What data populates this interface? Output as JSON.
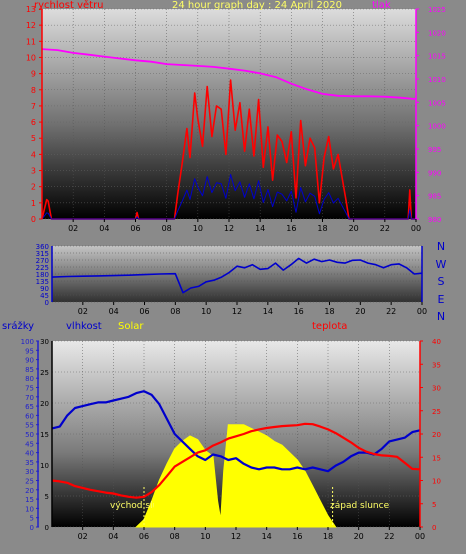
{
  "header": {
    "title": "24 hour graph day : 24 April 2020",
    "left_label": "rychlost větru",
    "right_label": "tlak",
    "wind_dir_letters": [
      "N",
      "W",
      "S",
      "E",
      "N"
    ],
    "bottom_labels": {
      "rain": "srážky",
      "humidity": "vlhkost",
      "solar": "Solar",
      "temp": "teplota"
    },
    "sunrise": "východ slunce",
    "sunset": "západ slunce"
  },
  "colors": {
    "wind": "#ff0000",
    "gust": "#ff0000",
    "pressure": "#ff00ff",
    "direction": "#0000cc",
    "humidity": "#0000cc",
    "solar": "#ffff00",
    "temperature": "#ff0000",
    "rain": "#2222cc",
    "title": "#ffff66"
  },
  "chart_data": [
    {
      "type": "line",
      "title": "24 hour graph day : 24 April 2020",
      "x_ticks": [
        "02",
        "04",
        "06",
        "08",
        "10",
        "12",
        "14",
        "16",
        "18",
        "20",
        "22",
        "00"
      ],
      "xlim": [
        0,
        24
      ],
      "y_left": {
        "label": "rychlost větru",
        "ylim": [
          0,
          13
        ],
        "ticks": [
          0,
          1,
          2,
          3,
          4,
          5,
          6,
          7,
          8,
          9,
          10,
          11,
          12,
          13
        ]
      },
      "y_right": {
        "label": "tlak",
        "ylim": [
          980,
          1025
        ],
        "ticks": [
          980,
          985,
          990,
          995,
          1000,
          1005,
          1010,
          1015,
          1020,
          1025
        ]
      },
      "series": [
        {
          "axis": "right",
          "x": [
            0,
            1,
            2,
            3,
            4,
            5,
            6,
            7,
            8,
            9,
            10,
            11,
            12,
            13,
            14,
            15,
            16,
            17,
            18,
            19,
            20,
            21,
            22,
            23,
            24
          ],
          "values": [
            1016.4,
            1016.2,
            1015.6,
            1015.2,
            1014.8,
            1014.4,
            1014.0,
            1013.7,
            1013.2,
            1013.0,
            1012.8,
            1012.6,
            1012.2,
            1011.8,
            1011.2,
            1010.4,
            1009.0,
            1007.8,
            1006.8,
            1006.4,
            1006.3,
            1006.3,
            1006.2,
            1006.0,
            1005.7
          ]
        },
        {
          "axis": "left",
          "representative": true,
          "x": [
            0,
            0.3,
            0.4,
            0.6,
            6.0,
            6.1,
            6.2,
            8.5,
            8.7,
            9.0,
            9.3,
            9.5,
            9.8,
            10.0,
            10.3,
            10.6,
            10.9,
            11.2,
            11.5,
            11.8,
            12.1,
            12.4,
            12.7,
            13.0,
            13.3,
            13.6,
            13.9,
            14.2,
            14.5,
            14.8,
            15.1,
            15.4,
            15.7,
            16.0,
            16.3,
            16.6,
            16.9,
            17.2,
            17.5,
            17.8,
            18.1,
            18.4,
            18.7,
            19.0,
            19.3,
            19.5,
            19.7,
            23.5,
            23.6,
            23.7,
            24
          ],
          "values": [
            0,
            1.2,
            1.1,
            0,
            0,
            0.4,
            0,
            0,
            1.5,
            3.5,
            5.6,
            3.8,
            7.8,
            6.2,
            4.5,
            8.2,
            5.1,
            7.0,
            6.8,
            4.0,
            8.6,
            5.5,
            7.2,
            4.2,
            6.8,
            3.9,
            7.4,
            3.2,
            5.7,
            2.4,
            5.2,
            4.8,
            3.5,
            5.4,
            1.3,
            6.1,
            3.3,
            5.0,
            4.4,
            1.0,
            3.8,
            5.1,
            3.1,
            4.0,
            2.3,
            1.2,
            0,
            0,
            1.8,
            0,
            0
          ]
        }
      ]
    },
    {
      "type": "line",
      "x_ticks": [
        "02",
        "04",
        "06",
        "08",
        "10",
        "12",
        "14",
        "16",
        "18",
        "20",
        "22",
        "00"
      ],
      "xlim": [
        0,
        24
      ],
      "y_left": {
        "ylim": [
          0,
          360
        ],
        "ticks": [
          0,
          45,
          90,
          135,
          180,
          225,
          270,
          315,
          360
        ]
      },
      "y_right_labels": [
        "N",
        "W",
        "S",
        "E",
        "N"
      ],
      "series": [
        {
          "representative": true,
          "x": [
            0,
            1,
            2,
            3,
            4,
            5,
            6,
            7,
            8,
            8.5,
            9,
            9.5,
            10,
            10.5,
            11,
            11.5,
            12,
            12.5,
            13,
            13.5,
            14,
            14.5,
            15,
            15.5,
            16,
            16.5,
            17,
            17.5,
            18,
            18.5,
            19,
            19.5,
            20,
            20.5,
            21,
            21.5,
            22,
            22.5,
            23,
            23.5,
            24
          ],
          "values": [
            160,
            164,
            166,
            168,
            170,
            172,
            176,
            180,
            182,
            60,
            90,
            100,
            130,
            140,
            160,
            190,
            230,
            220,
            240,
            210,
            215,
            250,
            205,
            240,
            280,
            250,
            275,
            260,
            270,
            255,
            250,
            268,
            270,
            250,
            240,
            220,
            240,
            245,
            220,
            180,
            185
          ]
        }
      ]
    },
    {
      "type": "line",
      "x_ticks": [
        "02",
        "04",
        "06",
        "08",
        "10",
        "12",
        "14",
        "16",
        "18",
        "20",
        "22",
        "00"
      ],
      "xlim": [
        0,
        24
      ],
      "y_rain": {
        "label": "srážky",
        "ylim": [
          0,
          100
        ],
        "ticks": [
          0,
          5,
          10,
          15,
          20,
          25,
          30,
          35,
          40,
          45,
          50,
          55,
          60,
          65,
          70,
          75,
          80,
          85,
          90,
          95,
          100
        ]
      },
      "y_humidity": {
        "label": "vlhkost",
        "ylim": [
          0,
          30
        ],
        "ticks": [
          0,
          5,
          10,
          15,
          20,
          25,
          30
        ]
      },
      "y_temp": {
        "label": "teplota",
        "ylim": [
          0,
          40
        ],
        "ticks": [
          0,
          5,
          10,
          15,
          20,
          25,
          30,
          35,
          40
        ]
      },
      "series": [
        {
          "name": "vlhkost",
          "axis": "rain_scale",
          "x": [
            0,
            0.5,
            1,
            1.5,
            2,
            2.5,
            3,
            3.5,
            4,
            4.5,
            5,
            5.5,
            6,
            6.5,
            7,
            7.5,
            8,
            8.5,
            9,
            9.5,
            10,
            10.5,
            11,
            11.5,
            12,
            12.5,
            13,
            13.5,
            14,
            14.5,
            15,
            15.5,
            16,
            16.5,
            17,
            17.5,
            18,
            18.5,
            19,
            19.5,
            20,
            20.5,
            21,
            21.5,
            22,
            22.5,
            23,
            23.5,
            24
          ],
          "values": [
            53,
            54,
            60,
            64,
            65,
            66,
            67,
            67,
            68,
            69,
            70,
            72,
            73,
            71,
            66,
            58,
            50,
            46,
            42,
            38,
            36,
            39,
            38,
            36,
            37,
            34,
            32,
            31,
            32,
            32,
            31,
            31,
            32,
            31,
            32,
            31,
            30,
            33,
            35,
            38,
            40,
            40,
            39,
            42,
            46,
            47,
            48,
            51,
            52
          ]
        },
        {
          "name": "Solar",
          "axis": "rain_scale",
          "representative": true,
          "x": [
            5.5,
            6,
            6.5,
            7,
            7.5,
            8,
            8.5,
            9,
            9.5,
            10,
            10.5,
            10.8,
            11,
            11.2,
            11.5,
            12,
            12.5,
            13,
            13.5,
            14,
            14.5,
            15,
            15.5,
            16,
            16.5,
            17,
            17.5,
            18,
            18.5
          ],
          "values": [
            0,
            4,
            14,
            25,
            34,
            42,
            46,
            49,
            47,
            41,
            38,
            14,
            4,
            30,
            55,
            55,
            55,
            53,
            51,
            49,
            46,
            44,
            40,
            36,
            30,
            22,
            14,
            6,
            0
          ]
        },
        {
          "name": "teplota",
          "axis": "temp",
          "x": [
            0,
            0.5,
            1,
            1.5,
            2,
            2.5,
            3,
            3.5,
            4,
            4.5,
            5,
            5.5,
            6,
            6.5,
            7,
            7.5,
            8,
            8.5,
            9,
            9.5,
            10,
            10.5,
            11,
            11.5,
            12,
            12.5,
            13,
            13.5,
            14,
            14.5,
            15,
            15.5,
            16,
            16.5,
            17,
            17.5,
            18,
            18.5,
            19,
            19.5,
            20,
            20.5,
            21,
            21.5,
            22,
            22.5,
            23,
            23.5,
            24
          ],
          "values": [
            10,
            9.8,
            9.5,
            8.8,
            8.4,
            8.0,
            7.7,
            7.4,
            7.2,
            6.8,
            6.5,
            6.3,
            6.5,
            7.5,
            9.0,
            11.0,
            13.0,
            14.0,
            15.0,
            16.0,
            16.5,
            17.5,
            18.2,
            19.0,
            19.5,
            20.0,
            20.6,
            21.0,
            21.3,
            21.5,
            21.7,
            21.8,
            21.9,
            22.2,
            22.1,
            21.6,
            21.0,
            20.2,
            19.2,
            18.2,
            17.0,
            16.2,
            15.7,
            15.4,
            15.3,
            15.1,
            13.8,
            12.5,
            12.4
          ]
        }
      ]
    }
  ]
}
